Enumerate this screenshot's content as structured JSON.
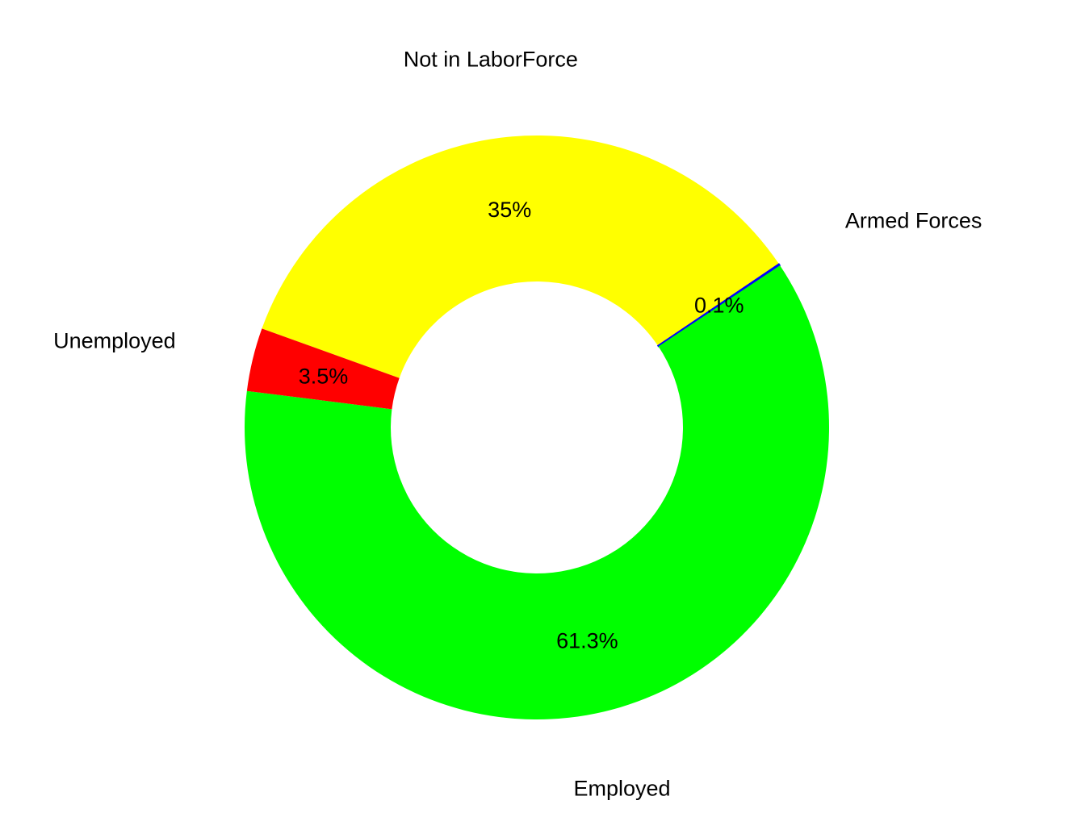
{
  "chart_data": {
    "type": "pie",
    "donut": true,
    "title": "",
    "slices": [
      {
        "label": "Not in LaborForce",
        "value": 35.0,
        "value_label": "35%",
        "color": "#FFFF00"
      },
      {
        "label": "Armed Forces",
        "value": 0.1,
        "value_label": "0.1%",
        "color": "#0000FF"
      },
      {
        "label": "Employed",
        "value": 61.3,
        "value_label": "61.3%",
        "color": "#00FF00"
      },
      {
        "label": "Unemployed",
        "value": 3.5,
        "value_label": "3.5%",
        "color": "#FF0000"
      }
    ],
    "legend": "none"
  }
}
